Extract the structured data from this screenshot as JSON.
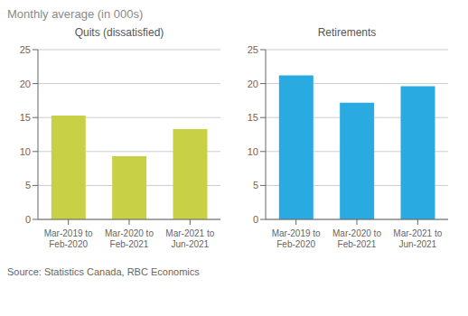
{
  "title": "Monthly average (in 000s)",
  "annotations": [
    "Source: Statistics Canada, RBC Economics"
  ],
  "chart_data": [
    {
      "type": "bar",
      "title": "Quits (dissatisfied)",
      "categories": [
        "Mar-2019 to\nFeb-2020",
        "Mar-2020 to\nFeb-2021",
        "Mar-2021 to\nJun-2021"
      ],
      "values": [
        15.3,
        9.3,
        13.3
      ],
      "color": "#c8d145",
      "ylim": [
        0,
        25
      ],
      "yticks": [
        0,
        5,
        10,
        15,
        20,
        25
      ],
      "grid": true
    },
    {
      "type": "bar",
      "title": "Retirements",
      "categories": [
        "Mar-2019 to\nFeb-2020",
        "Mar-2020 to\nFeb-2021",
        "Mar-2021 to\nJun-2021"
      ],
      "values": [
        21.2,
        17.2,
        19.6
      ],
      "color": "#29abe2",
      "ylim": [
        0,
        25
      ],
      "yticks": [
        0,
        5,
        10,
        15,
        20,
        25
      ],
      "grid": true
    }
  ]
}
